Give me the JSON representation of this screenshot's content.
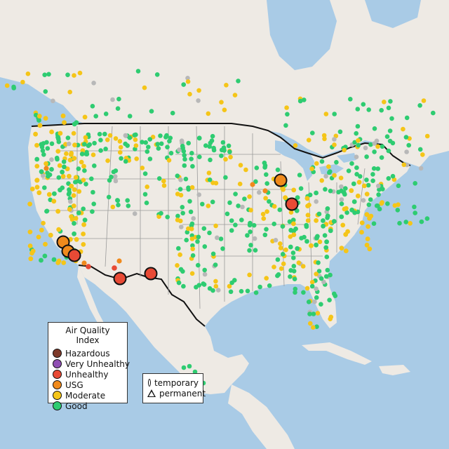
{
  "legend": {
    "title": "Air Quality Index",
    "categories": [
      {
        "label": "Hazardous",
        "color": "#7e3a2a"
      },
      {
        "label": "Very Unhealthy",
        "color": "#8f4fb3"
      },
      {
        "label": "Unhealthy",
        "color": "#e84a35"
      },
      {
        "label": "USG",
        "color": "#f08a1c"
      },
      {
        "label": "Moderate",
        "color": "#f5c518"
      },
      {
        "label": "Good",
        "color": "#2ecc71"
      }
    ]
  },
  "shape_legend": {
    "temporary": "temporary",
    "permanent": "permanent"
  },
  "colors": {
    "water": "#a9cbe6",
    "land": "#eeeae4",
    "border": "#111111",
    "state_lines": "#9a9a9a",
    "no_data": "#b8b8b8"
  }
}
